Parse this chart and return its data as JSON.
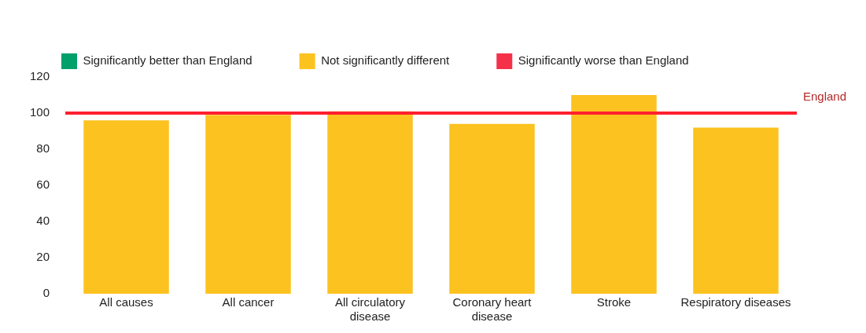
{
  "chart_data": {
    "type": "bar",
    "categories": [
      [
        "All causes"
      ],
      [
        "All cancer"
      ],
      [
        "All circulatory",
        "disease"
      ],
      [
        "Coronary heart",
        "disease"
      ],
      [
        "Stroke"
      ],
      [
        "Respiratory diseases"
      ]
    ],
    "series": [
      {
        "name": "Significantly better than England",
        "color": "#00a06a",
        "values": [
          null,
          null,
          null,
          null,
          null,
          null
        ]
      },
      {
        "name": "Not significantly different",
        "color": "#fcc21f",
        "values": [
          96,
          99,
          101,
          94,
          110,
          92
        ]
      },
      {
        "name": "Significantly worse than England",
        "color": "#f5314a",
        "values": [
          null,
          null,
          null,
          null,
          null,
          null
        ]
      }
    ],
    "ylim": [
      0,
      120
    ],
    "yticks": [
      0,
      20,
      40,
      60,
      80,
      100,
      120
    ],
    "grid": false,
    "legend": "top",
    "ref_lines": [
      {
        "axis": "y",
        "value": 100,
        "label": "England",
        "color": "#ff1f2f"
      }
    ]
  }
}
